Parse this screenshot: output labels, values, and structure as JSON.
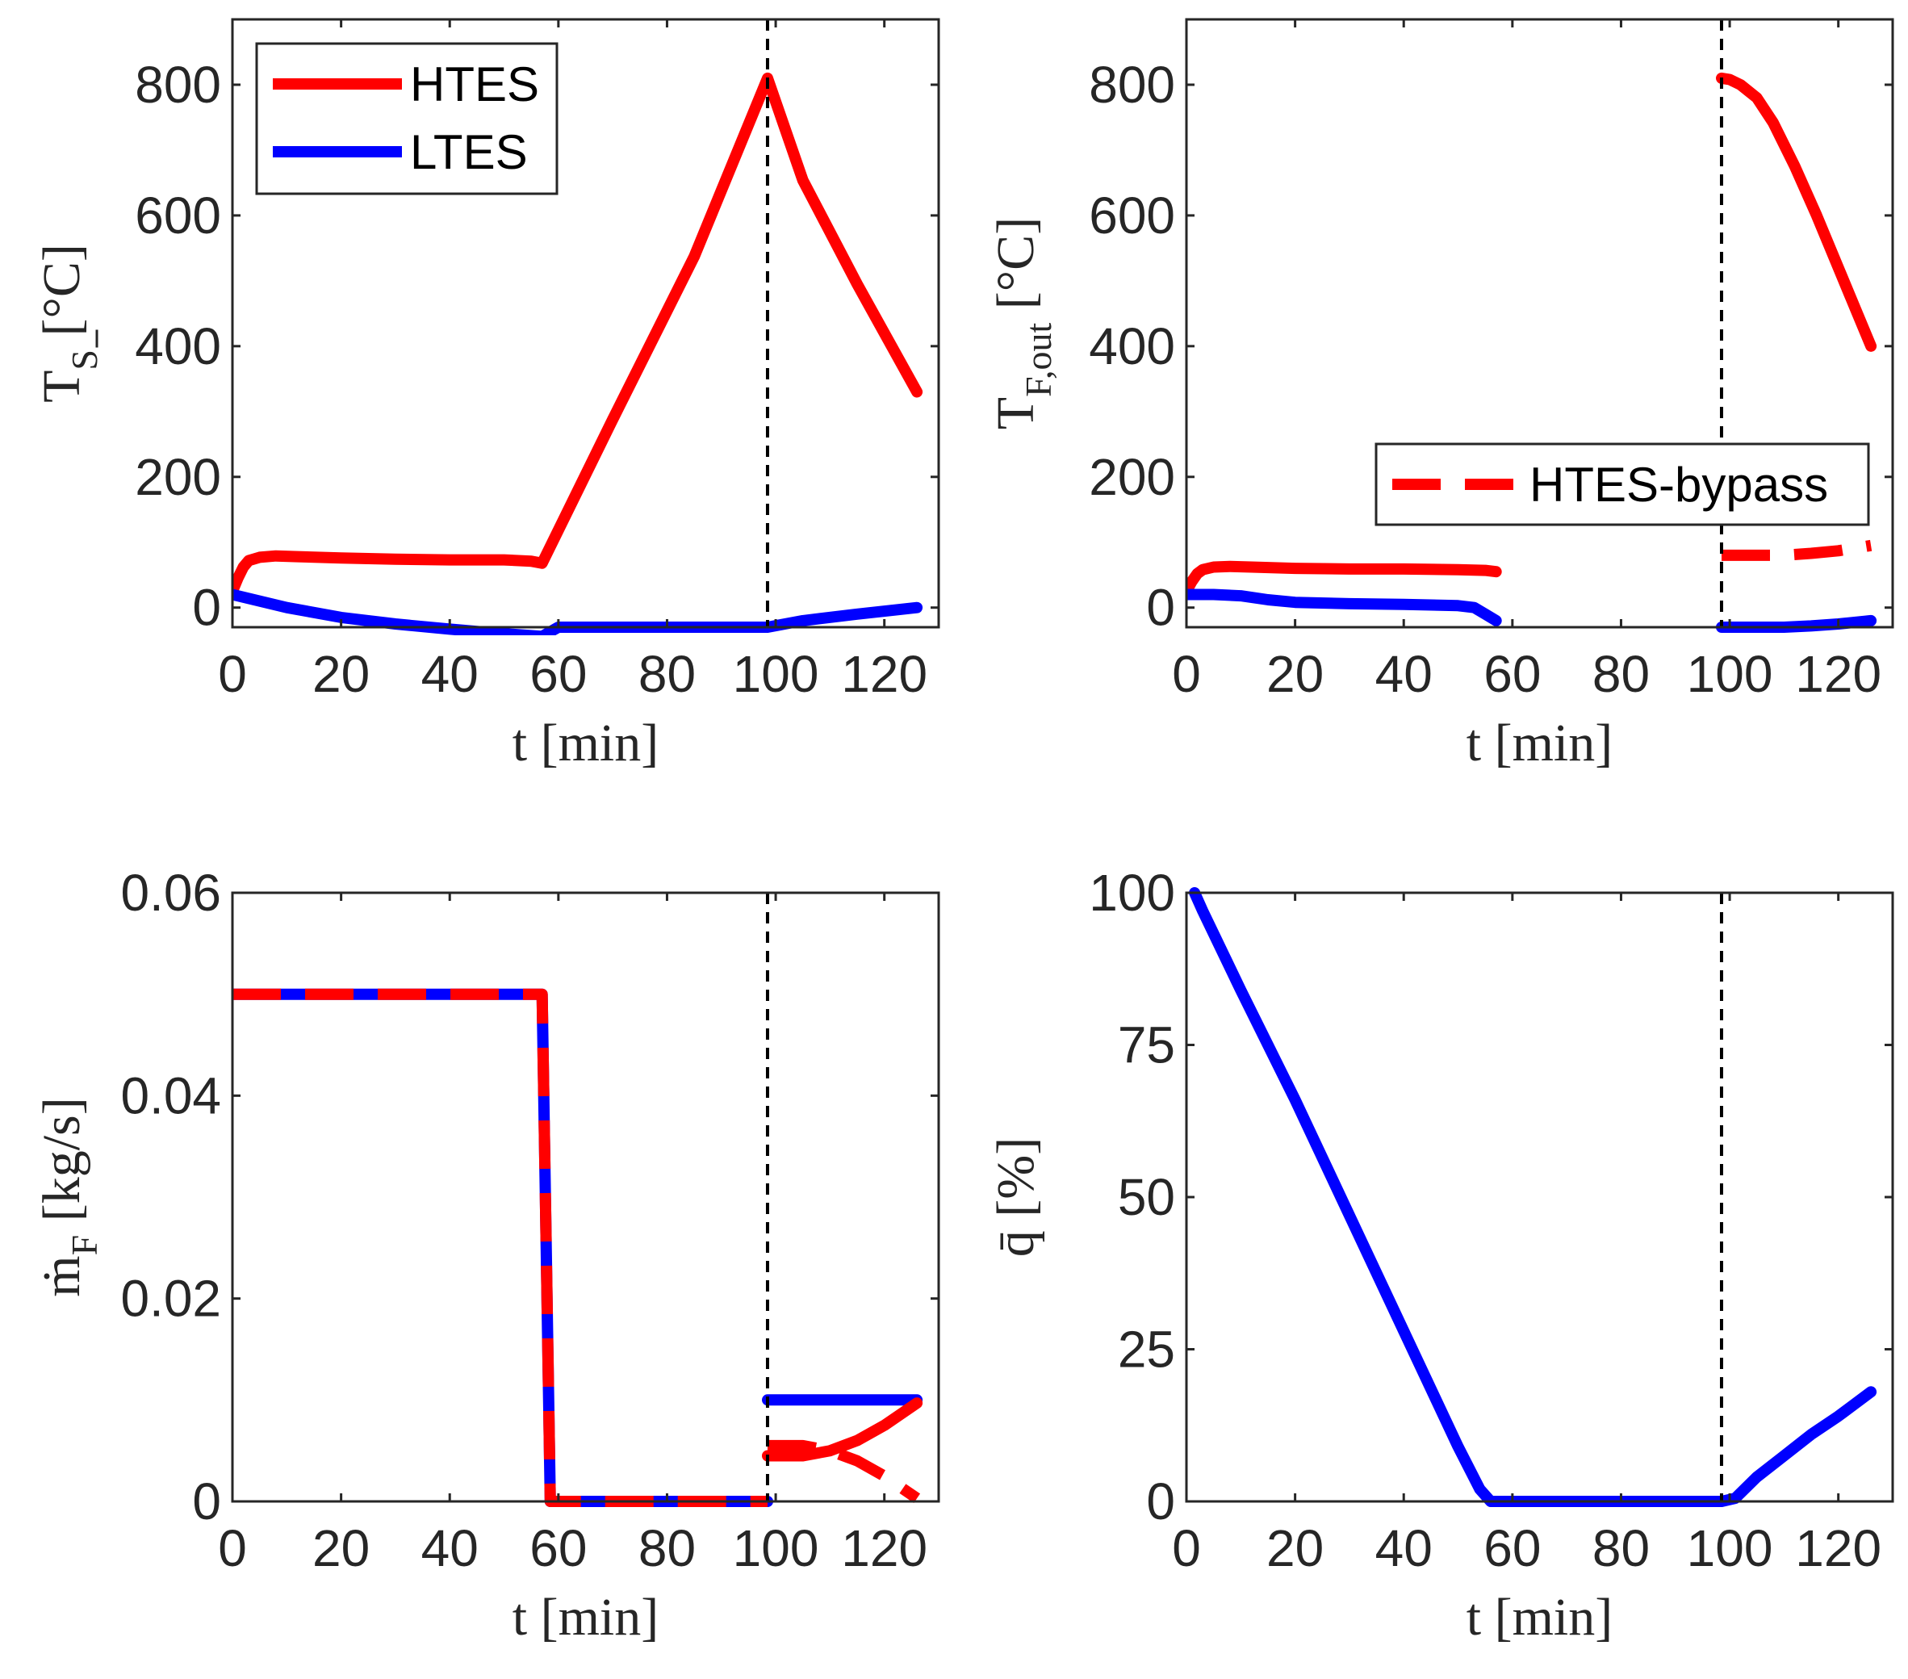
{
  "colors": {
    "red": "#ff0000",
    "blue": "#0000ff",
    "axis": "#262626",
    "vline": "#000000"
  },
  "chart_data": [
    {
      "id": "ts",
      "type": "line",
      "xlabel": "t [min]",
      "ylabel": "T̄S [°C]",
      "xlim": [
        0,
        130
      ],
      "ylim": [
        -30,
        900
      ],
      "xticks": [
        0,
        20,
        40,
        60,
        80,
        100,
        120
      ],
      "xtick_labels": [
        "0",
        "20",
        "40",
        "60",
        "80",
        "100",
        "120"
      ],
      "yticks": [
        0,
        200,
        400,
        600,
        800
      ],
      "ytick_labels": [
        "0",
        "200",
        "400",
        "600",
        "800"
      ],
      "vline": 98.5,
      "legend": {
        "position": "top-left",
        "entries": [
          {
            "label": "HTES",
            "color": "#ff0000",
            "style": "solid"
          },
          {
            "label": "LTES",
            "color": "#0000ff",
            "style": "solid"
          }
        ]
      },
      "series": [
        {
          "name": "HTES",
          "color": "#ff0000",
          "dash": "solid",
          "x": [
            0,
            1,
            2,
            3,
            5,
            8,
            12,
            20,
            30,
            40,
            50,
            55,
            57,
            70,
            85,
            98.5,
            105,
            115,
            126
          ],
          "y": [
            25,
            45,
            62,
            72,
            77,
            79,
            78,
            76,
            74,
            73,
            73,
            71,
            68,
            288,
            537,
            810,
            654,
            495,
            330
          ]
        },
        {
          "name": "LTES",
          "color": "#0000ff",
          "dash": "solid",
          "x": [
            0,
            10,
            20,
            30,
            40,
            50,
            57,
            60,
            70,
            80,
            90,
            98.5,
            105,
            115,
            126
          ],
          "y": [
            20,
            0,
            -15,
            -25,
            -33,
            -40,
            -44,
            -30,
            -30,
            -30,
            -30,
            -30,
            -20,
            -10,
            0
          ]
        }
      ]
    },
    {
      "id": "tf",
      "type": "line",
      "xlabel": "t [min]",
      "ylabel": "TF,out [°C]",
      "xlim": [
        0,
        130
      ],
      "ylim": [
        -30,
        900
      ],
      "xticks": [
        0,
        20,
        40,
        60,
        80,
        100,
        120
      ],
      "xtick_labels": [
        "0",
        "20",
        "40",
        "60",
        "80",
        "100",
        "120"
      ],
      "yticks": [
        0,
        200,
        400,
        600,
        800
      ],
      "ytick_labels": [
        "0",
        "200",
        "400",
        "600",
        "800"
      ],
      "vline": 98.5,
      "legend": {
        "position": "center-right",
        "entries": [
          {
            "label": "HTES-bypass",
            "color": "#ff0000",
            "style": "dashed"
          }
        ]
      },
      "series": [
        {
          "name": "HTES",
          "color": "#ff0000",
          "dash": "solid",
          "x": [
            0,
            1,
            2,
            3,
            5,
            8,
            12,
            20,
            30,
            40,
            50,
            55,
            57
          ],
          "y": [
            25,
            40,
            52,
            58,
            62,
            63,
            62,
            60,
            59,
            59,
            58,
            57,
            55
          ]
        },
        {
          "name": "LTES",
          "color": "#0000ff",
          "dash": "solid",
          "x": [
            0,
            5,
            10,
            15,
            20,
            30,
            40,
            50,
            53,
            55,
            57
          ],
          "y": [
            20,
            20,
            18,
            12,
            8,
            6,
            5,
            3,
            0,
            -10,
            -20
          ]
        },
        {
          "name": "HTES",
          "color": "#ff0000",
          "dash": "solid",
          "x": [
            98.5,
            100,
            102,
            105,
            108,
            112,
            116,
            120,
            123,
            126
          ],
          "y": [
            810,
            808,
            800,
            780,
            742,
            675,
            600,
            520,
            460,
            400
          ]
        },
        {
          "name": "HTES-bypass",
          "color": "#ff0000",
          "dash": "dashed",
          "x": [
            98.5,
            105,
            110,
            115,
            120,
            126
          ],
          "y": [
            80,
            80,
            80,
            83,
            87,
            95
          ]
        },
        {
          "name": "LTES",
          "color": "#0000ff",
          "dash": "solid",
          "x": [
            98.5,
            105,
            110,
            115,
            120,
            126
          ],
          "y": [
            -30,
            -30,
            -30,
            -28,
            -25,
            -20
          ]
        }
      ]
    },
    {
      "id": "mf",
      "type": "line",
      "xlabel": "t [min]",
      "ylabel": "ṁF [kg/s]",
      "xlim": [
        0,
        130
      ],
      "ylim": [
        0,
        0.06
      ],
      "xticks": [
        0,
        20,
        40,
        60,
        80,
        100,
        120
      ],
      "xtick_labels": [
        "0",
        "20",
        "40",
        "60",
        "80",
        "100",
        "120"
      ],
      "yticks": [
        0,
        0.02,
        0.04,
        0.06
      ],
      "ytick_labels": [
        "0",
        "0.02",
        "0.04",
        "0.06"
      ],
      "vline": 98.5,
      "series": [
        {
          "name": "LTES",
          "color": "#0000ff",
          "dash": "solid",
          "x": [
            0,
            57,
            58.5,
            98.5
          ],
          "y": [
            0.05,
            0.05,
            0,
            0
          ]
        },
        {
          "name": "HTES",
          "color": "#ff0000",
          "dash": "dashed",
          "x": [
            0,
            57,
            58.5,
            98.5
          ],
          "y": [
            0.05,
            0.05,
            0,
            0
          ]
        },
        {
          "name": "LTES",
          "color": "#0000ff",
          "dash": "solid",
          "x": [
            98.5,
            126
          ],
          "y": [
            0.01,
            0.01
          ]
        },
        {
          "name": "HTES",
          "color": "#ff0000",
          "dash": "solid",
          "x": [
            98.5,
            105,
            110,
            115,
            120,
            126
          ],
          "y": [
            0.0045,
            0.0045,
            0.005,
            0.006,
            0.0075,
            0.0097
          ]
        },
        {
          "name": "HTES-bypass",
          "color": "#ff0000",
          "dash": "dashed",
          "x": [
            98.5,
            105,
            110,
            115,
            120,
            126
          ],
          "y": [
            0.0055,
            0.0055,
            0.005,
            0.004,
            0.0025,
            0.0003
          ]
        }
      ]
    },
    {
      "id": "q",
      "type": "line",
      "xlabel": "t [min]",
      "ylabel": "q̄ [%]",
      "xlim": [
        0,
        130
      ],
      "ylim": [
        0,
        100
      ],
      "xticks": [
        0,
        20,
        40,
        60,
        80,
        100,
        120
      ],
      "xtick_labels": [
        "0",
        "20",
        "40",
        "60",
        "80",
        "100",
        "120"
      ],
      "yticks": [
        0,
        25,
        50,
        75,
        100
      ],
      "ytick_labels": [
        "0",
        "25",
        "50",
        "75",
        "100"
      ],
      "vline": 98.5,
      "series": [
        {
          "name": "LTES",
          "color": "#0000ff",
          "dash": "solid",
          "x": [
            1.5,
            3,
            10,
            20,
            30,
            40,
            50,
            54,
            56,
            57,
            70,
            98.5,
            101,
            105,
            110,
            115,
            120,
            126
          ],
          "y": [
            100,
            97,
            84,
            66,
            47,
            28,
            9,
            2,
            0,
            0,
            0,
            0,
            0.5,
            4,
            7.5,
            11,
            14,
            18
          ]
        }
      ]
    }
  ]
}
